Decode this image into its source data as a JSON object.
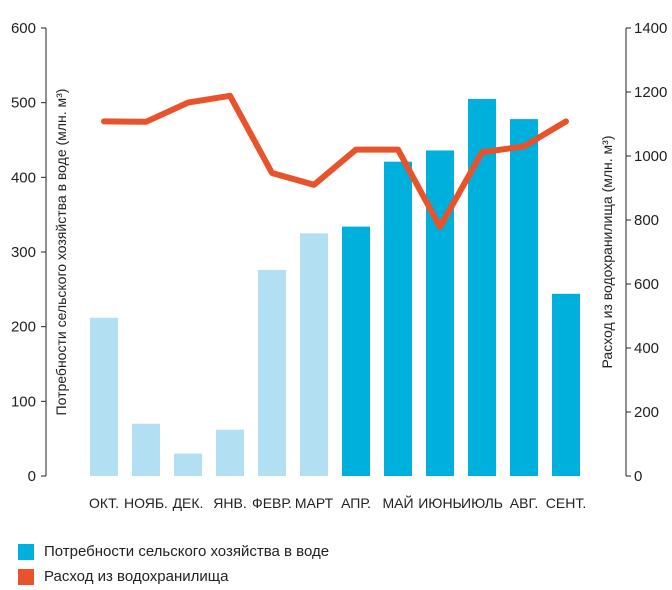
{
  "chart_data": {
    "type": "bar+line",
    "categories": [
      "ОКТ.",
      "НОЯБ.",
      "ДЕК.",
      "ЯНВ.",
      "ФЕВР.",
      "МАРТ",
      "АПР.",
      "МАЙ",
      "ИЮНЬ",
      "ИЮЛЬ",
      "АВГ.",
      "СЕНТ."
    ],
    "series": [
      {
        "name": "Потребности сельского хозяйства в воде",
        "type": "bar",
        "axis": "left",
        "values": [
          212,
          70,
          30,
          62,
          276,
          325,
          334,
          421,
          436,
          505,
          478,
          244
        ],
        "colors": [
          "#b3dff3",
          "#b3dff3",
          "#b3dff3",
          "#b3dff3",
          "#b3dff3",
          "#b3dff3",
          "#00b0dc",
          "#00b0dc",
          "#00b0dc",
          "#00b0dc",
          "#00b0dc",
          "#00b0dc"
        ]
      },
      {
        "name": "Расход из водохранилища",
        "type": "line",
        "axis": "right",
        "values": [
          1108,
          1107,
          1167,
          1188,
          947,
          910,
          1020,
          1020,
          778,
          1012,
          1030,
          1108
        ],
        "color": "#e8532b"
      }
    ],
    "ylabel_left": "Потребности сельского хозяйства в воде (млн. м³)",
    "ylabel_right": "Расход из водохранилища (млн. м³)",
    "ylim_left": [
      0,
      600
    ],
    "ylim_right": [
      0,
      1400
    ],
    "yticks_left": [
      "0",
      "100",
      "200",
      "300",
      "400",
      "500",
      "600"
    ],
    "yticks_right": [
      "0",
      "200",
      "400",
      "600",
      "800",
      "1000",
      "1200",
      "1400"
    ],
    "grid": false,
    "legend_position": "bottom-left"
  },
  "legend": {
    "items": [
      {
        "label": "Потребности сельского хозяйства в воде",
        "color": "#00b0dc"
      },
      {
        "label": "Расход из водохранилища",
        "color": "#e8532b"
      }
    ]
  }
}
